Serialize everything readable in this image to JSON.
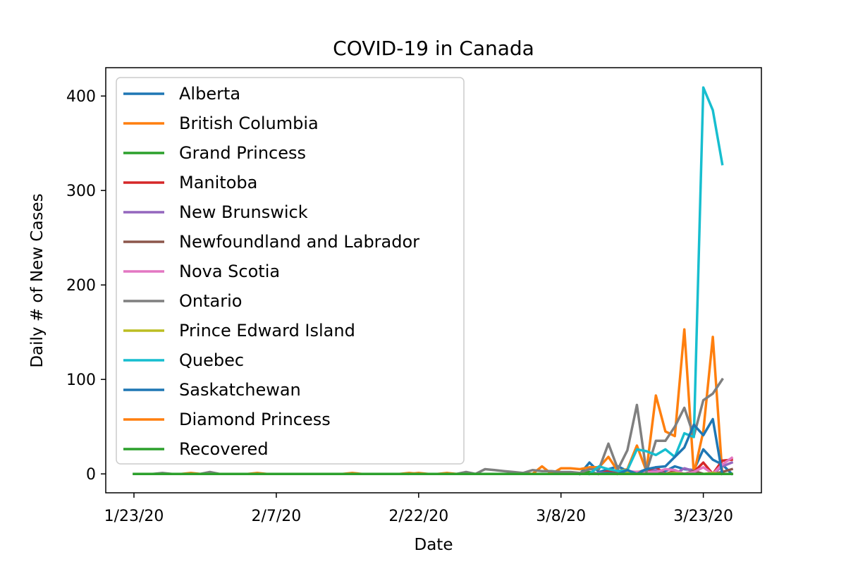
{
  "chart_data": {
    "type": "line",
    "title": "COVID-19 in Canada",
    "xlabel": "Date",
    "ylabel": "Daily # of New Cases",
    "x_range": [
      "1/23/20",
      "3/26/20"
    ],
    "ylim": [
      -20,
      430
    ],
    "xticks": [
      "1/23/20",
      "2/7/20",
      "2/22/20",
      "3/8/20",
      "3/23/20"
    ],
    "yticks": [
      0,
      100,
      200,
      300,
      400
    ],
    "grid": false,
    "legend_position": "upper-left",
    "series": [
      {
        "name": "Alberta",
        "color": "#1f77b4",
        "points": [
          [
            "3/10/20",
            0
          ],
          [
            "3/11/20",
            12
          ],
          [
            "3/12/20",
            2
          ],
          [
            "3/13/20",
            5
          ],
          [
            "3/14/20",
            8
          ],
          [
            "3/15/20",
            3
          ],
          [
            "3/16/20",
            1
          ],
          [
            "3/17/20",
            5
          ],
          [
            "3/18/20",
            3
          ],
          [
            "3/19/20",
            3
          ],
          [
            "3/20/20",
            8
          ],
          [
            "3/21/20",
            5
          ],
          [
            "3/22/20",
            4
          ],
          [
            "3/23/20",
            26
          ],
          [
            "3/24/20",
            15
          ],
          [
            "3/25/20",
            10
          ],
          [
            "3/26/20",
            0
          ]
        ]
      },
      {
        "name": "British Columbia",
        "color": "#ff7f0e",
        "points": [
          [
            "1/28/20",
            0
          ],
          [
            "1/29/20",
            1
          ],
          [
            "1/30/20",
            0
          ],
          [
            "2/4/20",
            0
          ],
          [
            "2/5/20",
            1
          ],
          [
            "2/6/20",
            0
          ],
          [
            "2/14/20",
            0
          ],
          [
            "2/15/20",
            1
          ],
          [
            "2/16/20",
            0
          ],
          [
            "2/20/20",
            0
          ],
          [
            "2/21/20",
            1
          ],
          [
            "2/22/20",
            0
          ],
          [
            "2/24/20",
            0
          ],
          [
            "2/25/20",
            1
          ],
          [
            "2/26/20",
            0
          ],
          [
            "3/3/20",
            0
          ],
          [
            "3/4/20",
            1
          ],
          [
            "3/5/20",
            0
          ],
          [
            "3/6/20",
            8
          ],
          [
            "3/7/20",
            0
          ],
          [
            "3/8/20",
            6
          ],
          [
            "3/9/20",
            6
          ],
          [
            "3/10/20",
            5
          ],
          [
            "3/11/20",
            7
          ],
          [
            "3/12/20",
            7
          ],
          [
            "3/13/20",
            18
          ],
          [
            "3/14/20",
            3
          ],
          [
            "3/15/20",
            5
          ],
          [
            "3/16/20",
            30
          ],
          [
            "3/17/20",
            3
          ],
          [
            "3/18/20",
            83
          ],
          [
            "3/19/20",
            45
          ],
          [
            "3/20/20",
            40
          ],
          [
            "3/21/20",
            153
          ],
          [
            "3/22/20",
            0
          ],
          [
            "3/23/20",
            45
          ],
          [
            "3/24/20",
            145
          ],
          [
            "3/25/20",
            0
          ]
        ]
      },
      {
        "name": "Grand Princess",
        "color": "#2ca02c",
        "points": [
          [
            "3/10/20",
            0
          ],
          [
            "3/11/20",
            2
          ],
          [
            "3/12/20",
            0
          ],
          [
            "3/26/20",
            0
          ]
        ]
      },
      {
        "name": "Manitoba",
        "color": "#d62728",
        "points": [
          [
            "3/12/20",
            0
          ],
          [
            "3/13/20",
            3
          ],
          [
            "3/14/20",
            1
          ],
          [
            "3/15/20",
            0
          ],
          [
            "3/16/20",
            2
          ],
          [
            "3/17/20",
            3
          ],
          [
            "3/18/20",
            7
          ],
          [
            "3/19/20",
            0
          ],
          [
            "3/20/20",
            3
          ],
          [
            "3/21/20",
            0
          ],
          [
            "3/22/20",
            2
          ],
          [
            "3/23/20",
            12
          ],
          [
            "3/24/20",
            0
          ],
          [
            "3/25/20",
            14
          ],
          [
            "3/26/20",
            15
          ]
        ]
      },
      {
        "name": "New Brunswick",
        "color": "#9467bd",
        "points": [
          [
            "3/11/20",
            0
          ],
          [
            "3/12/20",
            1
          ],
          [
            "3/13/20",
            1
          ],
          [
            "3/14/20",
            0
          ],
          [
            "3/15/20",
            2
          ],
          [
            "3/16/20",
            2
          ],
          [
            "3/17/20",
            1
          ],
          [
            "3/18/20",
            4
          ],
          [
            "3/19/20",
            0
          ],
          [
            "3/20/20",
            0
          ],
          [
            "3/21/20",
            6
          ],
          [
            "3/22/20",
            3
          ],
          [
            "3/23/20",
            0
          ],
          [
            "3/24/20",
            0
          ],
          [
            "3/25/20",
            8
          ],
          [
            "3/26/20",
            12
          ]
        ]
      },
      {
        "name": "Newfoundland and Labrador",
        "color": "#8c564b",
        "points": [
          [
            "3/14/20",
            0
          ],
          [
            "3/15/20",
            1
          ],
          [
            "3/16/20",
            1
          ],
          [
            "3/17/20",
            0
          ],
          [
            "3/18/20",
            1
          ],
          [
            "3/19/20",
            0
          ],
          [
            "3/20/20",
            2
          ],
          [
            "3/21/20",
            0
          ],
          [
            "3/22/20",
            3
          ],
          [
            "3/23/20",
            0
          ],
          [
            "3/24/20",
            0
          ],
          [
            "3/25/20",
            2
          ],
          [
            "3/26/20",
            5
          ]
        ]
      },
      {
        "name": "Nova Scotia",
        "color": "#e377c2",
        "points": [
          [
            "3/14/20",
            0
          ],
          [
            "3/15/20",
            3
          ],
          [
            "3/16/20",
            2
          ],
          [
            "3/17/20",
            2
          ],
          [
            "3/18/20",
            2
          ],
          [
            "3/19/20",
            5
          ],
          [
            "3/20/20",
            4
          ],
          [
            "3/21/20",
            0
          ],
          [
            "3/22/20",
            2
          ],
          [
            "3/23/20",
            7
          ],
          [
            "3/24/20",
            0
          ],
          [
            "3/25/20",
            10
          ],
          [
            "3/26/20",
            17
          ]
        ]
      },
      {
        "name": "Ontario",
        "color": "#7f7f7f",
        "points": [
          [
            "1/23/20",
            0
          ],
          [
            "1/25/20",
            0
          ],
          [
            "1/26/20",
            1
          ],
          [
            "1/27/20",
            0
          ],
          [
            "1/30/20",
            0
          ],
          [
            "1/31/20",
            2
          ],
          [
            "2/1/20",
            0
          ],
          [
            "2/26/20",
            0
          ],
          [
            "2/27/20",
            2
          ],
          [
            "2/28/20",
            0
          ],
          [
            "2/29/20",
            5
          ],
          [
            "3/1/20",
            4
          ],
          [
            "3/2/20",
            3
          ],
          [
            "3/3/20",
            2
          ],
          [
            "3/4/20",
            1
          ],
          [
            "3/5/20",
            4
          ],
          [
            "3/6/20",
            3
          ],
          [
            "3/7/20",
            3
          ],
          [
            "3/8/20",
            2
          ],
          [
            "3/9/20",
            2
          ],
          [
            "3/10/20",
            1
          ],
          [
            "3/11/20",
            5
          ],
          [
            "3/12/20",
            5
          ],
          [
            "3/13/20",
            32
          ],
          [
            "3/14/20",
            5
          ],
          [
            "3/15/20",
            25
          ],
          [
            "3/16/20",
            73
          ],
          [
            "3/17/20",
            2
          ],
          [
            "3/18/20",
            35
          ],
          [
            "3/19/20",
            35
          ],
          [
            "3/20/20",
            50
          ],
          [
            "3/21/20",
            70
          ],
          [
            "3/22/20",
            40
          ],
          [
            "3/23/20",
            78
          ],
          [
            "3/24/20",
            85
          ],
          [
            "3/25/20",
            100
          ]
        ]
      },
      {
        "name": "Prince Edward Island",
        "color": "#bcbd22",
        "points": [
          [
            "3/14/20",
            0
          ],
          [
            "3/15/20",
            1
          ],
          [
            "3/16/20",
            0
          ],
          [
            "3/19/20",
            0
          ],
          [
            "3/20/20",
            1
          ],
          [
            "3/21/20",
            0
          ],
          [
            "3/23/20",
            0
          ],
          [
            "3/24/20",
            1
          ],
          [
            "3/25/20",
            0
          ],
          [
            "3/26/20",
            0
          ]
        ]
      },
      {
        "name": "Quebec",
        "color": "#17becf",
        "points": [
          [
            "3/11/20",
            0
          ],
          [
            "3/12/20",
            8
          ],
          [
            "3/13/20",
            5
          ],
          [
            "3/14/20",
            3
          ],
          [
            "3/15/20",
            4
          ],
          [
            "3/16/20",
            26
          ],
          [
            "3/17/20",
            24
          ],
          [
            "3/18/20",
            20
          ],
          [
            "3/19/20",
            26
          ],
          [
            "3/20/20",
            18
          ],
          [
            "3/21/20",
            43
          ],
          [
            "3/22/20",
            39
          ],
          [
            "3/23/20",
            409
          ],
          [
            "3/24/20",
            385
          ],
          [
            "3/25/20",
            328
          ]
        ]
      },
      {
        "name": "Saskatchewan",
        "color": "#1f77b4",
        "points": [
          [
            "3/12/20",
            0
          ],
          [
            "3/13/20",
            1
          ],
          [
            "3/14/20",
            0
          ],
          [
            "3/15/20",
            4
          ],
          [
            "3/16/20",
            0
          ],
          [
            "3/17/20",
            5
          ],
          [
            "3/18/20",
            7
          ],
          [
            "3/19/20",
            8
          ],
          [
            "3/20/20",
            18
          ],
          [
            "3/21/20",
            28
          ],
          [
            "3/22/20",
            52
          ],
          [
            "3/23/20",
            41
          ],
          [
            "3/24/20",
            58
          ],
          [
            "3/25/20",
            0
          ]
        ]
      },
      {
        "name": "Diamond Princess",
        "color": "#ff7f0e",
        "points": [
          [
            "2/21/20",
            0
          ],
          [
            "2/22/20",
            1
          ],
          [
            "2/23/20",
            0
          ],
          [
            "3/26/20",
            0
          ]
        ]
      },
      {
        "name": "Recovered",
        "color": "#2ca02c",
        "points": [
          [
            "1/23/20",
            0
          ],
          [
            "3/26/20",
            0
          ]
        ]
      }
    ]
  }
}
